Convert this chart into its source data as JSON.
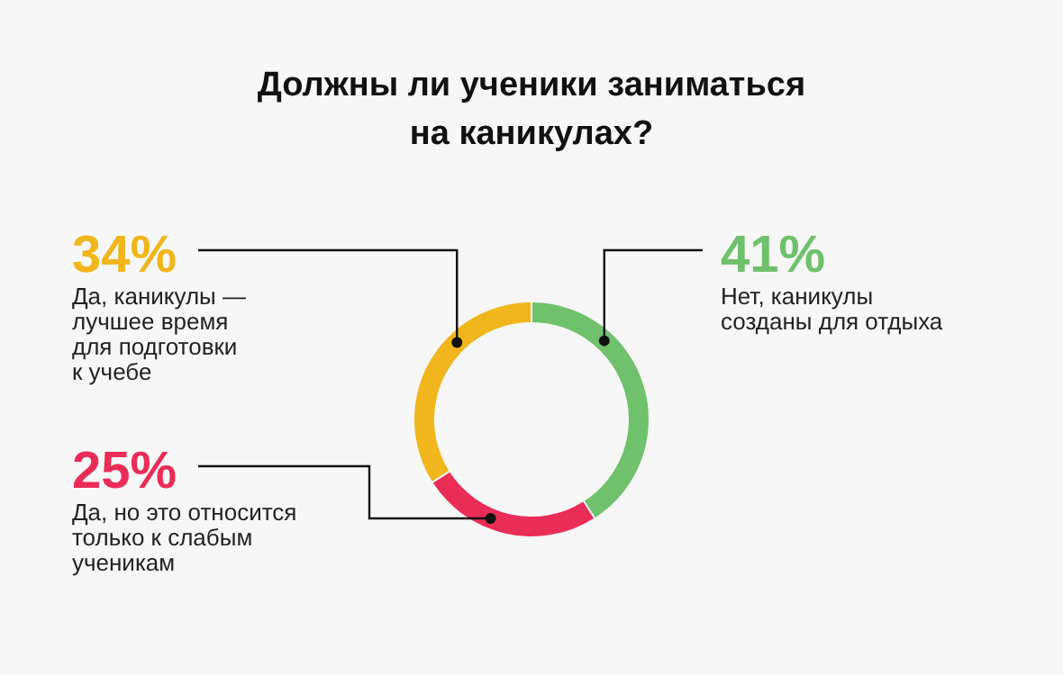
{
  "chart_data": {
    "type": "donut",
    "title": "Должны ли ученики заниматься на каникулах?",
    "categories": [
      "Нет, каникулы созданы для отдыха",
      "Да, но это относится только к слабым ученикам",
      "Да, каникулы — лучшее время для подготовки к учебе"
    ],
    "values": [
      41,
      25,
      34
    ],
    "value_labels": [
      "41%",
      "25%",
      "34%"
    ],
    "colors": [
      "#6fc16b",
      "#ea2d56",
      "#f1b61c"
    ]
  }
}
